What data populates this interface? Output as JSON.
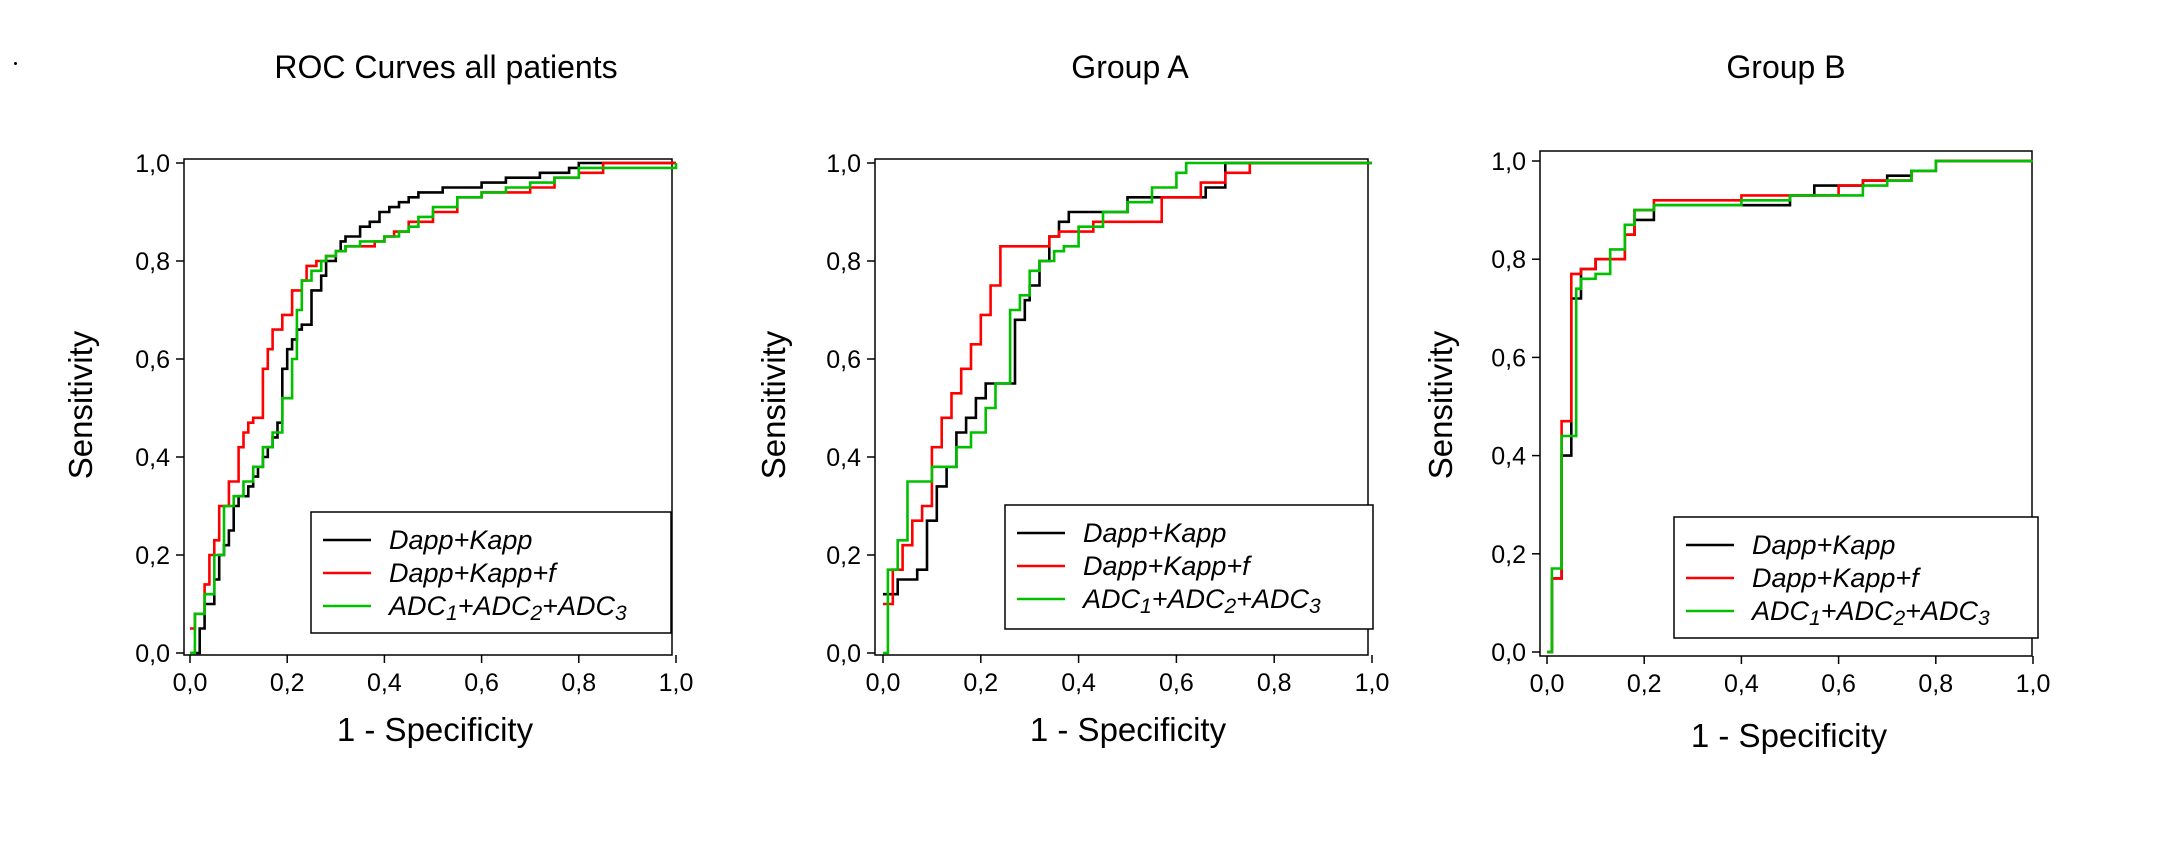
{
  "chart_data": [
    {
      "type": "line",
      "title": "ROC Curves all patients",
      "xlabel": "1 - Specificity",
      "ylabel": "Sensitivity",
      "xlim": [
        0,
        1
      ],
      "ylim": [
        0,
        1
      ],
      "xticks": [
        "0,0",
        "0,2",
        "0,4",
        "0,6",
        "0,8",
        "1,0"
      ],
      "yticks": [
        "0,0",
        "0,2",
        "0,4",
        "0,6",
        "0,8",
        "1,0"
      ],
      "legend_position": "bottom-right",
      "series": [
        {
          "name": "Dapp+Kapp",
          "color": "#000000",
          "x": [
            0,
            0.02,
            0.03,
            0.05,
            0.06,
            0.07,
            0.08,
            0.09,
            0.1,
            0.12,
            0.13,
            0.14,
            0.15,
            0.16,
            0.17,
            0.18,
            0.19,
            0.2,
            0.21,
            0.22,
            0.23,
            0.24,
            0.25,
            0.27,
            0.28,
            0.3,
            0.31,
            0.32,
            0.35,
            0.37,
            0.39,
            0.41,
            0.43,
            0.45,
            0.47,
            0.5,
            0.52,
            0.55,
            0.6,
            0.65,
            0.72,
            0.78,
            0.8,
            0.85,
            1.0
          ],
          "y": [
            0,
            0.05,
            0.1,
            0.15,
            0.2,
            0.22,
            0.25,
            0.3,
            0.32,
            0.34,
            0.36,
            0.38,
            0.4,
            0.42,
            0.44,
            0.47,
            0.58,
            0.62,
            0.64,
            0.66,
            0.67,
            0.67,
            0.74,
            0.77,
            0.8,
            0.82,
            0.84,
            0.85,
            0.87,
            0.88,
            0.9,
            0.91,
            0.92,
            0.93,
            0.94,
            0.94,
            0.95,
            0.95,
            0.96,
            0.97,
            0.98,
            0.99,
            1.0,
            1.0,
            1.0
          ]
        },
        {
          "name": "Dapp+Kapp+f",
          "color": "#ff0000",
          "x": [
            0,
            0.01,
            0.03,
            0.04,
            0.05,
            0.06,
            0.08,
            0.1,
            0.11,
            0.12,
            0.13,
            0.15,
            0.16,
            0.17,
            0.19,
            0.21,
            0.23,
            0.24,
            0.26,
            0.28,
            0.3,
            0.32,
            0.35,
            0.38,
            0.4,
            0.42,
            0.45,
            0.5,
            0.55,
            0.6,
            0.65,
            0.7,
            0.75,
            0.8,
            0.85,
            1.0
          ],
          "y": [
            0.05,
            0.08,
            0.14,
            0.2,
            0.23,
            0.3,
            0.35,
            0.42,
            0.45,
            0.47,
            0.48,
            0.58,
            0.62,
            0.66,
            0.69,
            0.74,
            0.76,
            0.79,
            0.8,
            0.81,
            0.82,
            0.83,
            0.83,
            0.84,
            0.85,
            0.86,
            0.88,
            0.9,
            0.93,
            0.94,
            0.94,
            0.95,
            0.97,
            0.98,
            1.0,
            1.0
          ]
        },
        {
          "name": "ADC1+ADC2+ADC3",
          "color": "#00c000",
          "x": [
            0,
            0.01,
            0.03,
            0.05,
            0.07,
            0.09,
            0.11,
            0.13,
            0.15,
            0.17,
            0.19,
            0.21,
            0.22,
            0.23,
            0.25,
            0.27,
            0.28,
            0.3,
            0.32,
            0.35,
            0.38,
            0.4,
            0.43,
            0.45,
            0.47,
            0.5,
            0.55,
            0.6,
            0.65,
            0.7,
            0.75,
            0.8,
            1.0
          ],
          "y": [
            0,
            0.08,
            0.12,
            0.2,
            0.3,
            0.32,
            0.35,
            0.38,
            0.42,
            0.45,
            0.52,
            0.6,
            0.7,
            0.76,
            0.78,
            0.8,
            0.81,
            0.82,
            0.83,
            0.84,
            0.84,
            0.85,
            0.86,
            0.87,
            0.89,
            0.91,
            0.93,
            0.94,
            0.95,
            0.96,
            0.97,
            0.99,
            1.0
          ]
        }
      ]
    },
    {
      "type": "line",
      "title": "Group A",
      "xlabel": "1 - Specificity",
      "ylabel": "Sensitivity",
      "xlim": [
        0,
        1
      ],
      "ylim": [
        0,
        1
      ],
      "xticks": [
        "0,0",
        "0,2",
        "0,4",
        "0,6",
        "0,8",
        "1,0"
      ],
      "yticks": [
        "0,0",
        "0,2",
        "0,4",
        "0,6",
        "0,8",
        "1,0"
      ],
      "legend_position": "bottom-right",
      "series": [
        {
          "name": "Dapp+Kapp",
          "color": "#000000",
          "x": [
            0,
            0.03,
            0.07,
            0.09,
            0.11,
            0.13,
            0.15,
            0.17,
            0.19,
            0.21,
            0.23,
            0.27,
            0.29,
            0.3,
            0.32,
            0.34,
            0.36,
            0.38,
            0.39,
            0.4,
            0.42,
            0.45,
            0.5,
            0.55,
            0.6,
            0.64,
            0.66,
            0.7,
            0.75,
            1.0
          ],
          "y": [
            0.12,
            0.15,
            0.17,
            0.27,
            0.34,
            0.38,
            0.45,
            0.48,
            0.52,
            0.55,
            0.55,
            0.68,
            0.72,
            0.75,
            0.8,
            0.85,
            0.88,
            0.9,
            0.9,
            0.9,
            0.9,
            0.9,
            0.93,
            0.93,
            0.93,
            0.93,
            0.95,
            1.0,
            1.0,
            1.0
          ]
        },
        {
          "name": "Dapp+Kapp+f",
          "color": "#ff0000",
          "x": [
            0,
            0.02,
            0.04,
            0.06,
            0.08,
            0.1,
            0.12,
            0.14,
            0.16,
            0.18,
            0.2,
            0.22,
            0.24,
            0.26,
            0.34,
            0.36,
            0.4,
            0.43,
            0.5,
            0.57,
            0.6,
            0.65,
            0.7,
            0.75,
            0.8,
            1.0
          ],
          "y": [
            0.1,
            0.17,
            0.22,
            0.27,
            0.3,
            0.42,
            0.48,
            0.53,
            0.58,
            0.63,
            0.69,
            0.75,
            0.83,
            0.83,
            0.85,
            0.86,
            0.86,
            0.88,
            0.88,
            0.93,
            0.93,
            0.96,
            0.98,
            1.0,
            1.0,
            1.0
          ]
        },
        {
          "name": "ADC1+ADC2+ADC3",
          "color": "#00c000",
          "x": [
            0,
            0.01,
            0.03,
            0.05,
            0.1,
            0.15,
            0.18,
            0.21,
            0.23,
            0.26,
            0.28,
            0.3,
            0.32,
            0.35,
            0.37,
            0.4,
            0.45,
            0.5,
            0.55,
            0.6,
            0.62,
            0.65,
            0.8,
            1.0
          ],
          "y": [
            0,
            0.17,
            0.23,
            0.35,
            0.38,
            0.42,
            0.45,
            0.5,
            0.55,
            0.7,
            0.73,
            0.78,
            0.8,
            0.82,
            0.83,
            0.87,
            0.9,
            0.92,
            0.95,
            0.98,
            1.0,
            1.0,
            1.0,
            1.0
          ]
        }
      ]
    },
    {
      "type": "line",
      "title": "Group B",
      "xlabel": "1 - Specificity",
      "ylabel": "Sensitivity",
      "xlim": [
        0,
        1
      ],
      "ylim": [
        0,
        1
      ],
      "xticks": [
        "0,0",
        "0,2",
        "0,4",
        "0,6",
        "0,8",
        "1,0"
      ],
      "yticks": [
        "0,0",
        "0,2",
        "0,4",
        "0,6",
        "0,8",
        "1,0"
      ],
      "legend_position": "bottom-right",
      "series": [
        {
          "name": "Dapp+Kapp",
          "color": "#000000",
          "x": [
            0,
            0.01,
            0.03,
            0.05,
            0.07,
            0.1,
            0.16,
            0.18,
            0.22,
            0.28,
            0.5,
            0.55,
            0.6,
            0.65,
            0.7,
            0.75,
            0.8,
            1.0
          ],
          "y": [
            0,
            0.15,
            0.4,
            0.72,
            0.78,
            0.8,
            0.85,
            0.88,
            0.91,
            0.91,
            0.93,
            0.95,
            0.95,
            0.96,
            0.97,
            0.98,
            1.0,
            1.0
          ]
        },
        {
          "name": "Dapp+Kapp+f",
          "color": "#ff0000",
          "x": [
            0,
            0.01,
            0.03,
            0.05,
            0.07,
            0.1,
            0.16,
            0.18,
            0.22,
            0.4,
            0.42,
            0.6,
            0.65,
            0.7,
            0.75,
            0.8,
            1.0
          ],
          "y": [
            0,
            0.15,
            0.47,
            0.77,
            0.78,
            0.8,
            0.85,
            0.9,
            0.92,
            0.93,
            0.93,
            0.95,
            0.96,
            0.96,
            0.98,
            1.0,
            1.0
          ]
        },
        {
          "name": "ADC1+ADC2+ADC3",
          "color": "#00c000",
          "x": [
            0,
            0.01,
            0.03,
            0.06,
            0.07,
            0.1,
            0.13,
            0.16,
            0.18,
            0.22,
            0.3,
            0.4,
            0.5,
            0.6,
            0.65,
            0.7,
            0.75,
            0.8,
            1.0
          ],
          "y": [
            0,
            0.17,
            0.44,
            0.74,
            0.76,
            0.77,
            0.82,
            0.87,
            0.9,
            0.91,
            0.91,
            0.92,
            0.93,
            0.93,
            0.95,
            0.96,
            0.98,
            1.0,
            1.0
          ]
        }
      ]
    }
  ]
}
